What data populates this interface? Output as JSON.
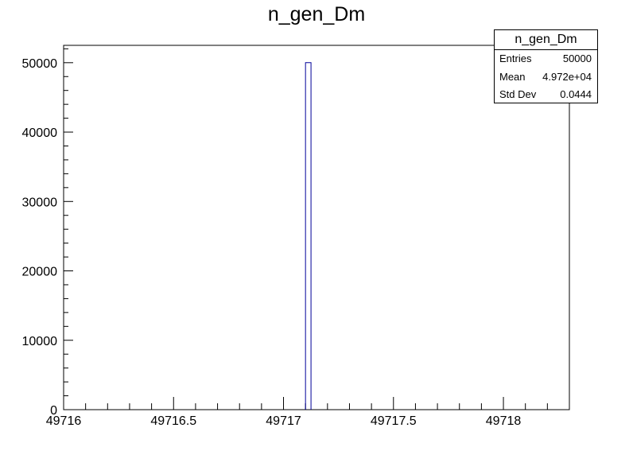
{
  "chart_data": {
    "type": "bar",
    "title": "n_gen_Dm",
    "xlabel": "",
    "ylabel": "",
    "xlim": [
      49716,
      49718.3
    ],
    "ylim": [
      0,
      52500
    ],
    "bins": [
      {
        "x_low": 49717.1,
        "x_high": 49717.125,
        "value": 50000
      }
    ],
    "xticks": [
      {
        "value": 49716,
        "label": "49716"
      },
      {
        "value": 49716.5,
        "label": "49716.5"
      },
      {
        "value": 49717,
        "label": "49717"
      },
      {
        "value": 49717.5,
        "label": "49717.5"
      },
      {
        "value": 49718,
        "label": "49718"
      }
    ],
    "yticks": [
      {
        "value": 0,
        "label": "0"
      },
      {
        "value": 10000,
        "label": "10000"
      },
      {
        "value": 20000,
        "label": "20000"
      },
      {
        "value": 30000,
        "label": "30000"
      },
      {
        "value": 40000,
        "label": "40000"
      },
      {
        "value": 50000,
        "label": "50000"
      }
    ],
    "grid": false,
    "legend": "none",
    "line_color": "#000099"
  },
  "stats_box": {
    "name": "n_gen_Dm",
    "rows": [
      {
        "label": "Entries",
        "value": "50000"
      },
      {
        "label": "Mean",
        "value": "4.972e+04"
      },
      {
        "label": "Std Dev",
        "value": "0.0444"
      }
    ]
  }
}
